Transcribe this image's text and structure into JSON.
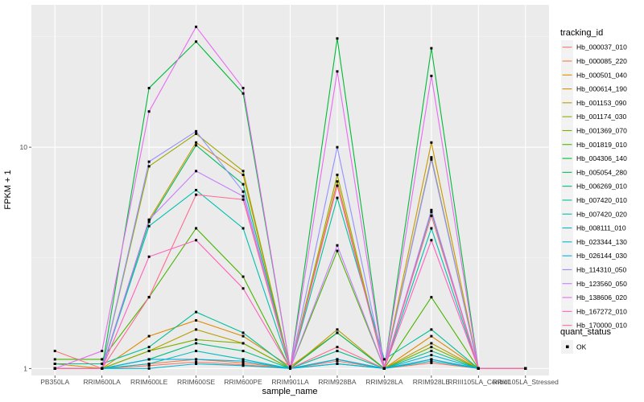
{
  "chart_data": {
    "type": "line",
    "y_scale": "log10",
    "xlabel": "sample_name",
    "ylabel": "FPKM + 1",
    "ylim": [
      0.93,
      44
    ],
    "y_ticks": [
      1,
      10
    ],
    "y_tick_labels": [
      "1",
      "10"
    ],
    "categories": [
      "PB350LA",
      "RRIM600LA",
      "RRIM600LE",
      "RRIM600SE",
      "RRIM600PE",
      "RRIM901LA",
      "RRIM928BA",
      "RRIM928LA",
      "RRIM928LE",
      "RRIII105LA_Control",
      "RRIII105LA_Stressed"
    ],
    "legend_title": "tracking_id",
    "legend2_title": "quant_status",
    "legend2_label": "OK",
    "series": [
      {
        "name": "Hb_000037_010",
        "color": "#F8766D",
        "values": [
          1.2,
          1.0,
          1.03,
          1.07,
          1.04,
          1.0,
          1.08,
          1.0,
          1.06,
          1.0,
          1.0
        ]
      },
      {
        "name": "Hb_000085_220",
        "color": "#EE8043",
        "values": [
          1.0,
          1.0,
          1.05,
          1.1,
          1.06,
          1.0,
          1.1,
          1.0,
          1.1,
          1.0,
          1.0
        ]
      },
      {
        "name": "Hb_000501_040",
        "color": "#DF8A00",
        "values": [
          1.05,
          1.0,
          1.4,
          1.65,
          1.4,
          1.02,
          1.45,
          1.0,
          1.4,
          1.0,
          1.0
        ]
      },
      {
        "name": "Hb_000614_190",
        "color": "#CC9600",
        "values": [
          1.0,
          1.0,
          4.7,
          10.5,
          7.5,
          1.0,
          7.0,
          1.0,
          10.5,
          1.0,
          1.0
        ]
      },
      {
        "name": "Hb_001153_090",
        "color": "#B79F00",
        "values": [
          1.0,
          1.0,
          1.2,
          1.5,
          1.3,
          1.0,
          1.5,
          1.0,
          1.3,
          1.0,
          1.0
        ]
      },
      {
        "name": "Hb_001174_030",
        "color": "#9DA700",
        "values": [
          1.0,
          1.0,
          8.2,
          11.5,
          7.8,
          1.0,
          7.5,
          1.0,
          9.0,
          1.0,
          1.0
        ]
      },
      {
        "name": "Hb_001369_070",
        "color": "#7CAE00",
        "values": [
          1.0,
          1.0,
          1.2,
          1.35,
          1.3,
          1.0,
          1.2,
          1.0,
          1.25,
          1.0,
          1.0
        ]
      },
      {
        "name": "Hb_001819_010",
        "color": "#49B500",
        "values": [
          1.1,
          1.1,
          2.1,
          4.3,
          2.6,
          1.0,
          3.4,
          1.0,
          2.1,
          1.0,
          1.0
        ]
      },
      {
        "name": "Hb_004306_140",
        "color": "#00BA38",
        "values": [
          1.0,
          1.0,
          18.5,
          30.0,
          17.5,
          1.0,
          31.0,
          1.0,
          28.0,
          1.0,
          1.0
        ]
      },
      {
        "name": "Hb_005054_280",
        "color": "#00BD5F",
        "values": [
          1.0,
          1.0,
          4.6,
          10.2,
          6.8,
          1.0,
          1.45,
          1.0,
          5.1,
          1.0,
          1.0
        ]
      },
      {
        "name": "Hb_006269_010",
        "color": "#00BF7D",
        "values": [
          1.0,
          1.0,
          1.1,
          1.3,
          1.2,
          1.0,
          1.1,
          1.0,
          1.2,
          1.0,
          1.0
        ]
      },
      {
        "name": "Hb_007420_010",
        "color": "#00C097",
        "values": [
          1.05,
          1.05,
          1.25,
          1.8,
          1.45,
          1.0,
          5.9,
          1.1,
          1.5,
          1.0,
          1.0
        ]
      },
      {
        "name": "Hb_007420_020",
        "color": "#00C0AF",
        "values": [
          1.0,
          1.0,
          4.4,
          6.4,
          4.3,
          1.0,
          1.2,
          1.0,
          4.3,
          1.0,
          1.0
        ]
      },
      {
        "name": "Hb_008111_010",
        "color": "#00BDC2",
        "values": [
          1.0,
          1.0,
          1.05,
          1.2,
          1.1,
          1.0,
          1.05,
          1.0,
          1.08,
          1.0,
          1.0
        ]
      },
      {
        "name": "Hb_023344_130",
        "color": "#00B8D3",
        "values": [
          1.0,
          1.0,
          1.0,
          1.05,
          1.03,
          1.0,
          1.05,
          1.0,
          1.15,
          1.0,
          1.0
        ]
      },
      {
        "name": "Hb_026144_030",
        "color": "#00B0E2",
        "values": [
          1.0,
          1.0,
          1.1,
          1.1,
          1.08,
          1.0,
          1.1,
          1.0,
          1.1,
          1.0,
          1.0
        ]
      },
      {
        "name": "Hb_114310_050",
        "color": "#9590FF",
        "values": [
          1.0,
          1.0,
          8.6,
          11.8,
          6.3,
          1.0,
          10.0,
          1.0,
          8.8,
          1.0,
          1.0
        ]
      },
      {
        "name": "Hb_123560_050",
        "color": "#C77CFF",
        "values": [
          1.0,
          1.0,
          4.7,
          7.8,
          6.0,
          1.0,
          3.6,
          1.0,
          5.2,
          1.0,
          1.0
        ]
      },
      {
        "name": "Hb_138606_020",
        "color": "#E76BF3",
        "values": [
          1.0,
          1.2,
          14.5,
          35.0,
          18.5,
          1.0,
          22.0,
          1.0,
          21.0,
          1.0,
          1.0
        ]
      },
      {
        "name": "Hb_167272_010",
        "color": "#FF62BC",
        "values": [
          1.0,
          1.0,
          3.2,
          3.8,
          2.3,
          1.0,
          6.7,
          1.0,
          3.8,
          1.0,
          1.0
        ]
      },
      {
        "name": "Hb_170000_010",
        "color": "#FF6C91",
        "values": [
          1.0,
          1.0,
          2.1,
          6.1,
          5.8,
          1.0,
          1.25,
          1.0,
          4.9,
          1.0,
          1.0
        ]
      }
    ]
  }
}
